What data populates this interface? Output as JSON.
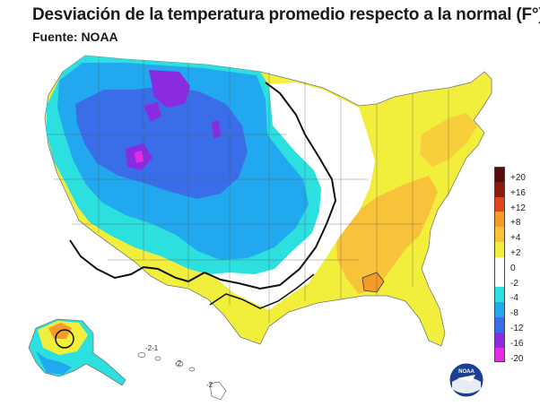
{
  "title": "Desviación de la temperatura promedio respecto a la normal (F°)",
  "source": "Fuente: NOAA",
  "legend": {
    "bins": [
      {
        "label": "+20",
        "color": "#5a0a0a"
      },
      {
        "label": "+16",
        "color": "#8b1a10"
      },
      {
        "label": "+12",
        "color": "#e0451e"
      },
      {
        "label": "+8",
        "color": "#f59b2a"
      },
      {
        "label": "+4",
        "color": "#f8c23a"
      },
      {
        "label": "+2",
        "color": "#f2ee3c"
      },
      {
        "label": "0",
        "color": "#ffffff"
      },
      {
        "label": "-2",
        "color": "#ffffff"
      },
      {
        "label": "-4",
        "color": "#2ce0e0"
      },
      {
        "label": "-8",
        "color": "#22a8ee"
      },
      {
        "label": "-12",
        "color": "#3a6ee8"
      },
      {
        "label": "-16",
        "color": "#8a2be2"
      },
      {
        "label": "-20",
        "color": "#e62ae6"
      }
    ],
    "extra_bottom_color": "#e62ae6"
  },
  "map_labels": {
    "hawaii_contour_1": "-2",
    "hawaii_contour_2": "-2",
    "hawaii_contour_3": "-2-1"
  },
  "logo": {
    "text": "NOAA"
  }
}
